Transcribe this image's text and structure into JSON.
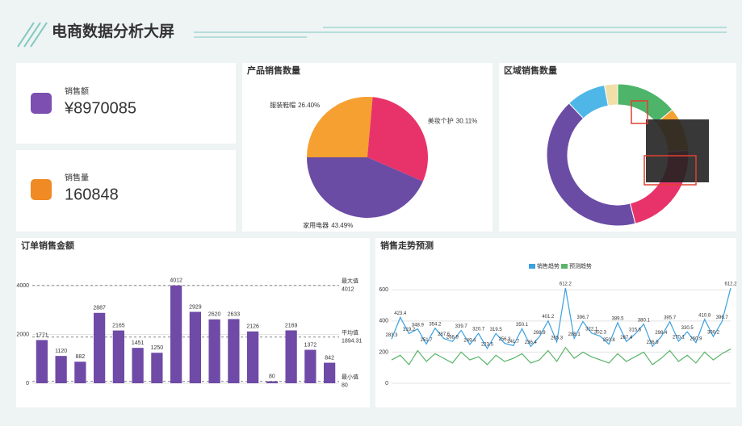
{
  "header": {
    "title": "电商数据分析大屏"
  },
  "cards": [
    {
      "label": "销售额",
      "value": "¥8970085"
    },
    {
      "label": "销售量",
      "value": "160848"
    }
  ],
  "chart_data": [
    {
      "type": "pie",
      "title": "产品销售数量",
      "categories": [
        "服装鞋帽",
        "美妆个护",
        "家用电器"
      ],
      "values": [
        26.4,
        30.11,
        43.49
      ],
      "value_labels": [
        "26.40%",
        "30.11%",
        "43.49%"
      ],
      "colors": [
        "#f5a030",
        "#e8336a",
        "#6a4ca5"
      ]
    },
    {
      "type": "donut",
      "title": "区域销售数量",
      "categories": [
        null,
        null,
        null,
        null,
        null,
        null
      ],
      "values": [
        14,
        10,
        22,
        42,
        9,
        3
      ],
      "colors": [
        "#4db46a",
        "#f5a030",
        "#e8336a",
        "#6a4ca5",
        "#4fb6e8",
        "#f1dfa8"
      ]
    },
    {
      "type": "bar",
      "title": "订单销售金额",
      "categories": [
        null,
        null,
        null,
        null,
        null,
        null,
        null,
        null,
        null,
        null,
        null,
        null,
        null,
        null,
        null,
        null
      ],
      "values": [
        1771,
        1120,
        882,
        2887,
        2165,
        1451,
        1250,
        4012,
        2929,
        2620,
        2633,
        2126,
        80,
        2169,
        1372,
        842
      ],
      "color": "#6f4aa6",
      "ylim": [
        0,
        4800
      ],
      "yticks": [
        0,
        2000,
        4000
      ],
      "marklines": [
        {
          "name": "最大值",
          "value": 4012
        },
        {
          "name": "平均值",
          "value": 1894.31
        },
        {
          "name": "最小值",
          "value": 80
        }
      ]
    },
    {
      "type": "line",
      "title": "销售走势预测",
      "x": [
        null,
        null,
        null,
        null,
        null,
        null,
        null,
        null,
        null,
        null,
        null,
        null,
        null,
        null,
        null,
        null,
        null,
        null,
        null,
        null,
        null,
        null,
        null,
        null,
        null,
        null,
        null,
        null,
        null,
        null,
        null,
        null,
        null,
        null,
        null,
        null,
        null,
        null,
        null,
        null
      ],
      "ylim": [
        0,
        700
      ],
      "yticks": [
        0,
        200,
        400,
        600
      ],
      "legend": "top",
      "series": [
        {
          "name": "销售趋势",
          "color": "#3ba0e0",
          "values": [
            283.3,
            423.4,
            319.2,
            348.9,
            251.7,
            354.2,
            287.6,
            268.9,
            339.7,
            249.4,
            320.7,
            223.5,
            319.5,
            256.3,
            241.7,
            350.1,
            236.4,
            298.9,
            401.2,
            265.3,
            612.2,
            288.1,
            396.7,
            322.1,
            302.3,
            250.8,
            389.5,
            267.4,
            315.6,
            380.1,
            236.9,
            298.4,
            395.7,
            270.1,
            330.5,
            260.9,
            410.8,
            300.2,
            396.7,
            612.2
          ]
        },
        {
          "name": "预测趋势",
          "color": "#5ab56a",
          "values": [
            150,
            180,
            120,
            210,
            140,
            190,
            160,
            130,
            200,
            150,
            170,
            120,
            180,
            140,
            160,
            190,
            130,
            150,
            210,
            140,
            230,
            160,
            200,
            170,
            150,
            130,
            190,
            140,
            170,
            200,
            120,
            160,
            210,
            140,
            180,
            130,
            200,
            150,
            190,
            220
          ]
        }
      ]
    }
  ]
}
